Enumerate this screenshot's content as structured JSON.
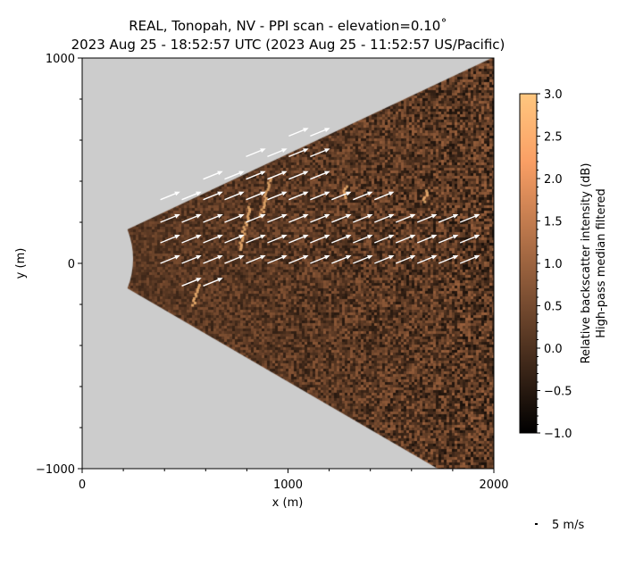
{
  "chart_data": {
    "type": "quiver",
    "title": "REAL, Tonopah, NV - PPI scan - elevation=0.10$^\\circ$",
    "title_line1": "REAL, Tonopah, NV - PPI scan - elevation=0.10˚",
    "title_line2": "2023 Aug 25 - 18:52:57 UTC (2023 Aug 25 - 11:52:57 US/Pacific)",
    "xlabel": "x (m)",
    "ylabel": "y (m)",
    "xlim": [
      0,
      2000
    ],
    "ylim": [
      -1000,
      1000
    ],
    "xticks": [
      "0",
      "1000",
      "2000"
    ],
    "yticks": [
      "−1000",
      "0",
      "1000"
    ],
    "xtick_values": [
      0,
      1000,
      2000
    ],
    "ytick_values": [
      -1000,
      0,
      1000
    ],
    "grid": false,
    "background_color": "#cccccc",
    "colorbar": {
      "colormap": "copper",
      "range": [
        -1.0,
        3.0
      ],
      "ticks": [
        "−1.0",
        "−0.5",
        "0.0",
        "0.5",
        "1.0",
        "1.5",
        "2.0",
        "2.5",
        "3.0"
      ],
      "tick_values": [
        -1.0,
        -0.5,
        0.0,
        0.5,
        1.0,
        1.5,
        2.0,
        2.5,
        3.0
      ],
      "label_line1": "Relative backscatter intensity (dB)",
      "label_line2": "High-pass median filtered"
    },
    "quiver_key": {
      "value": 5,
      "label": "5 m/s"
    },
    "wind_vectors": {
      "u": 37,
      "v": 15,
      "rows": [
        {
          "y": 620,
          "x": [
            1004,
            1108
          ]
        },
        {
          "y": 520,
          "x": [
            796,
            900,
            1004,
            1108
          ]
        },
        {
          "y": 410,
          "x": [
            588,
            692,
            796,
            900,
            1004,
            1108
          ]
        },
        {
          "y": 310,
          "x": [
            380,
            484,
            588,
            692,
            796,
            900,
            1004,
            1108,
            1212,
            1316,
            1420
          ]
        },
        {
          "y": 200,
          "x": [
            380,
            484,
            588,
            692,
            796,
            900,
            1004,
            1108,
            1212,
            1316,
            1420,
            1524,
            1628,
            1732,
            1836
          ]
        },
        {
          "y": 100,
          "x": [
            380,
            484,
            588,
            692,
            796,
            900,
            1004,
            1108,
            1212,
            1316,
            1420,
            1524,
            1628,
            1732,
            1836
          ]
        },
        {
          "y": 0,
          "x": [
            380,
            484,
            588,
            692,
            796,
            900,
            1004,
            1108,
            1212,
            1316,
            1420,
            1524,
            1628,
            1732,
            1836
          ]
        },
        {
          "y": -110,
          "x": [
            484,
            588
          ]
        }
      ]
    }
  }
}
